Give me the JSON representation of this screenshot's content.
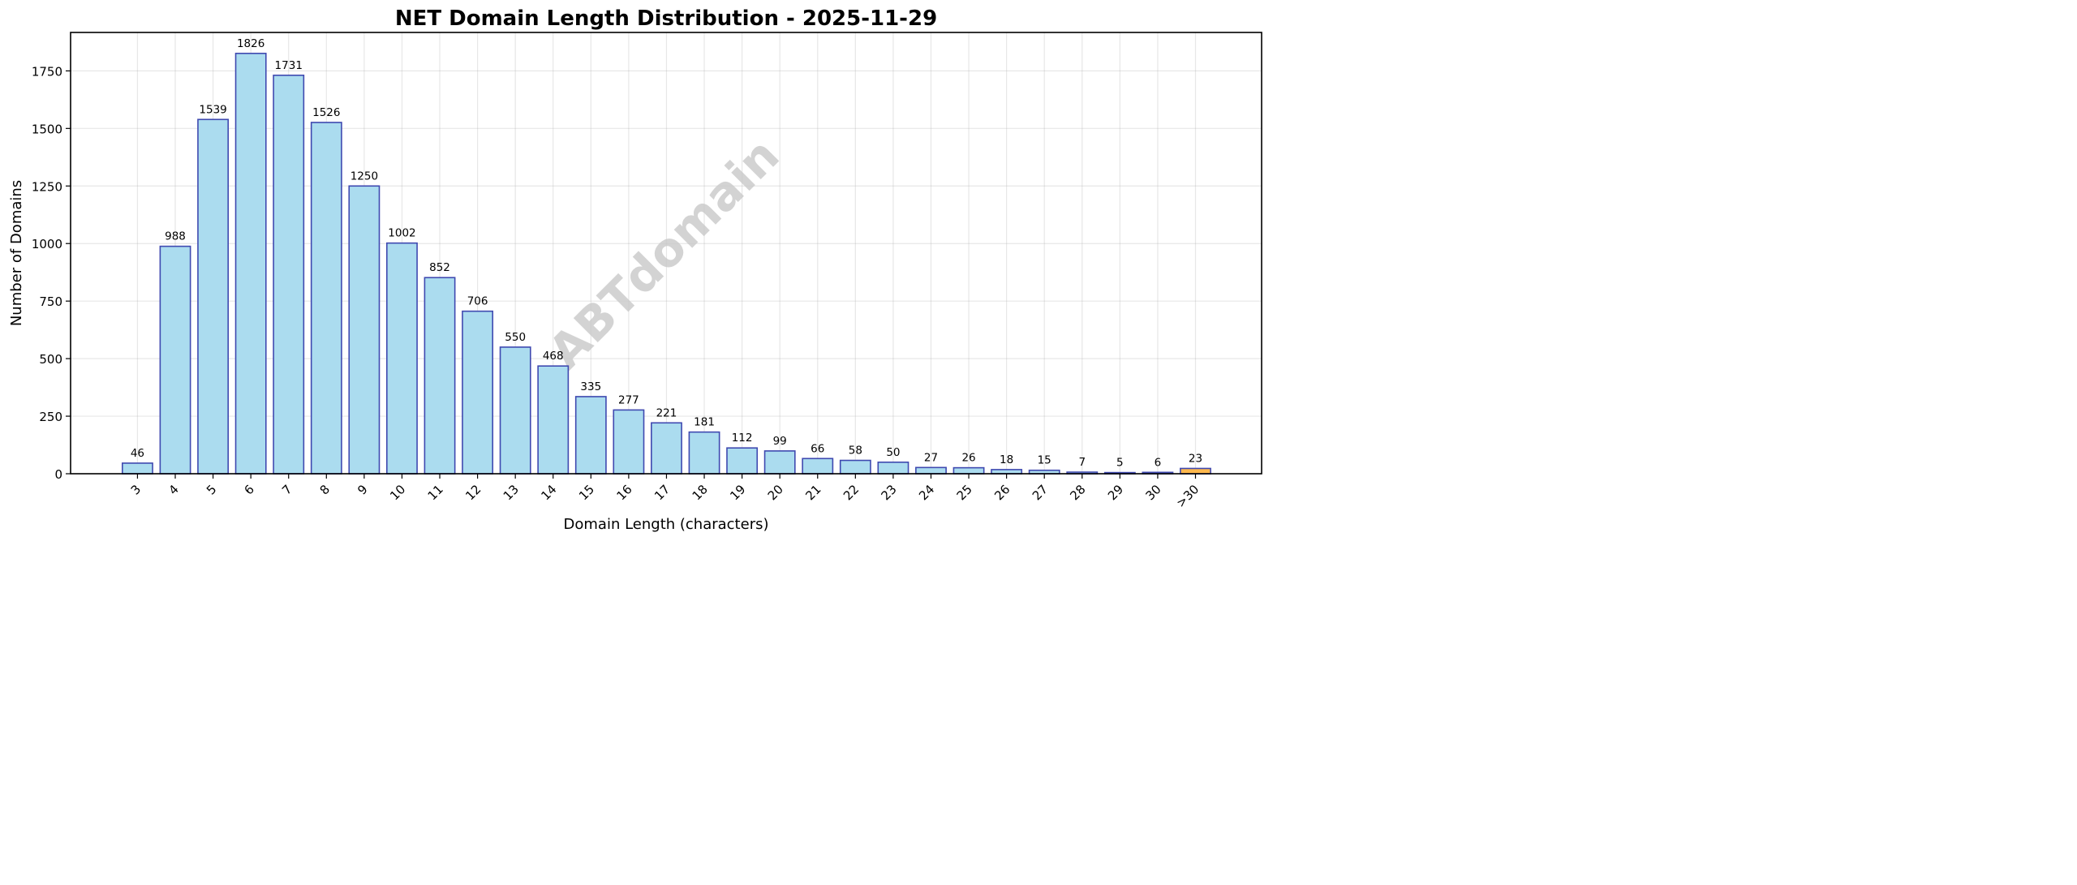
{
  "chart_data": {
    "type": "bar",
    "title": "NET Domain Length Distribution - 2025-11-29",
    "xlabel": "Domain Length (characters)",
    "ylabel": "Number of Domains",
    "categories": [
      "3",
      "4",
      "5",
      "6",
      "7",
      "8",
      "9",
      "10",
      "11",
      "12",
      "13",
      "14",
      "15",
      "16",
      "17",
      "18",
      "19",
      "20",
      "21",
      "22",
      "23",
      "24",
      "25",
      "26",
      "27",
      "28",
      "29",
      "30",
      ">30"
    ],
    "values": [
      46,
      988,
      1539,
      1826,
      1731,
      1526,
      1250,
      1002,
      852,
      706,
      550,
      468,
      335,
      277,
      221,
      181,
      112,
      99,
      66,
      58,
      50,
      27,
      26,
      18,
      15,
      7,
      5,
      6,
      23
    ],
    "ylim": [
      0,
      1917
    ],
    "yticks": [
      0,
      250,
      500,
      750,
      1000,
      1250,
      1500,
      1750
    ],
    "grid": true,
    "bar_color": "#abdcef",
    "bar_edge_color": "#3f49b0",
    "highlight_color": "#ffb84d",
    "highlight_category": ">30",
    "watermark": "ABTdomain"
  }
}
